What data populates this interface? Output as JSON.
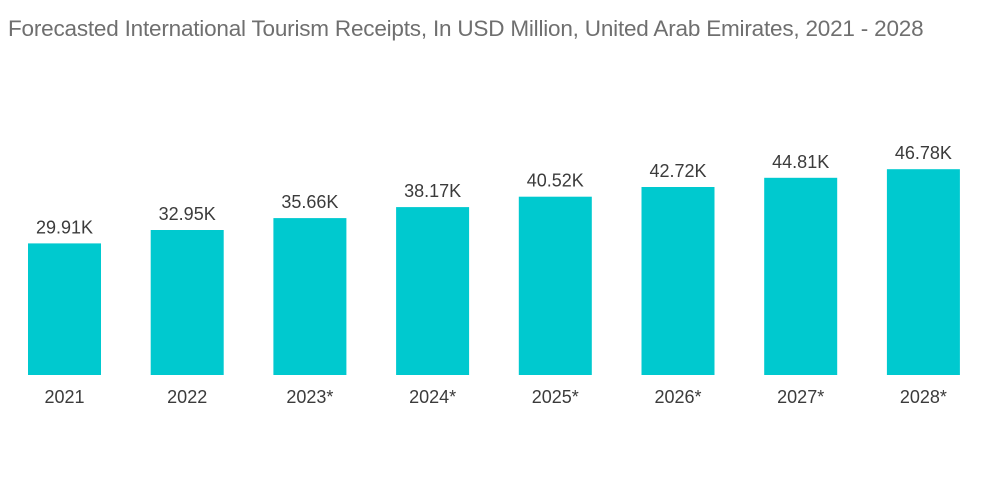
{
  "chart_data": {
    "type": "bar",
    "title": "Forecasted International Tourism Receipts, In USD Million, United Arab Emirates, 2021 - 2028",
    "categories": [
      "2021",
      "2022",
      "2023*",
      "2024*",
      "2025*",
      "2026*",
      "2027*",
      "2028*"
    ],
    "values": [
      29910,
      32950,
      35660,
      38170,
      40520,
      42720,
      44810,
      46780
    ],
    "value_labels": [
      "29.91K",
      "32.95K",
      "35.66K",
      "38.17K",
      "40.52K",
      "42.72K",
      "44.81K",
      "46.78K"
    ],
    "xlabel": "",
    "ylabel": "",
    "ylim": [
      0,
      50000
    ],
    "grid": false,
    "legend": "none",
    "bar_color": "#00c9cf"
  }
}
